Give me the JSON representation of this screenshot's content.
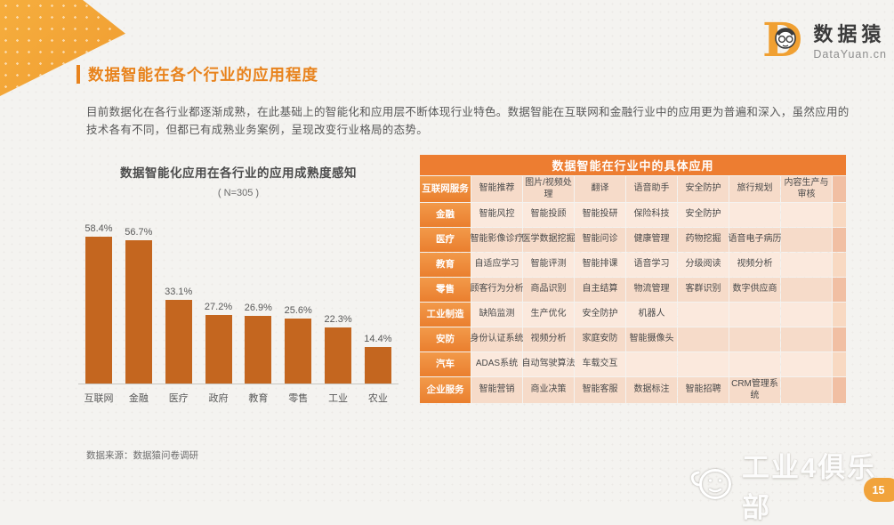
{
  "logo": {
    "name": "数据猿",
    "domain": "DataYuan.cn",
    "letter": "D"
  },
  "header": {
    "title": "数据智能在各个行业的应用程度"
  },
  "intro": "目前数据化在各行业都逐渐成熟，在此基础上的智能化和应用层不断体现行业特色。数据智能在互联网和金融行业中的应用更为普遍和深入，虽然应用的技术各有不同，但都已有成熟业务案例，呈现改变行业格局的态势。",
  "chart_data": {
    "type": "bar",
    "title": "数据智能化应用在各行业的应用成熟度感知",
    "subtitle": "( N=305 )",
    "categories": [
      "互联网",
      "金融",
      "医疗",
      "政府",
      "教育",
      "零售",
      "工业",
      "农业"
    ],
    "values": [
      58.4,
      56.7,
      33.1,
      27.2,
      26.9,
      25.6,
      22.3,
      14.4
    ],
    "data_labels": [
      "58.4%",
      "56.7%",
      "33.1%",
      "27.2%",
      "26.9%",
      "25.6%",
      "22.3%",
      "14.4%"
    ],
    "unit": "%",
    "ylim": [
      0,
      60
    ],
    "bar_color": "#c4661f",
    "grid": false,
    "legend": false
  },
  "table": {
    "title": "数据智能在行业中的具体应用",
    "rows": [
      {
        "label": "互联网服务",
        "cells": [
          "智能推荐",
          "图片/视频处理",
          "翻译",
          "语音助手",
          "安全防护",
          "旅行规划",
          "内容生产与审核"
        ]
      },
      {
        "label": "金融",
        "cells": [
          "智能风控",
          "智能投顾",
          "智能投研",
          "保险科技",
          "安全防护",
          "",
          ""
        ]
      },
      {
        "label": "医疗",
        "cells": [
          "智能影像诊疗",
          "医学数据挖掘",
          "智能问诊",
          "健康管理",
          "药物挖掘",
          "语音电子病历",
          ""
        ]
      },
      {
        "label": "教育",
        "cells": [
          "自适应学习",
          "智能评测",
          "智能排课",
          "语音学习",
          "分级阅读",
          "视频分析",
          ""
        ]
      },
      {
        "label": "零售",
        "cells": [
          "顾客行为分析",
          "商品识别",
          "自主结算",
          "物流管理",
          "客群识别",
          "数字供应商",
          ""
        ]
      },
      {
        "label": "工业制造",
        "cells": [
          "缺陷监测",
          "生产优化",
          "安全防护",
          "机器人",
          "",
          "",
          ""
        ]
      },
      {
        "label": "安防",
        "cells": [
          "身份认证系统",
          "视频分析",
          "家庭安防",
          "智能摄像头",
          "",
          "",
          ""
        ]
      },
      {
        "label": "汽车",
        "cells": [
          "ADAS系统",
          "自动驾驶算法",
          "车载交互",
          "",
          "",
          "",
          ""
        ]
      },
      {
        "label": "企业服务",
        "cells": [
          "智能营销",
          "商业决策",
          "智能客服",
          "数据标注",
          "智能招聘",
          "CRM管理系统",
          ""
        ]
      }
    ]
  },
  "footer": {
    "source": "数据来源：数据猿问卷调研",
    "watermark": "工业4俱乐部",
    "page_number": "15"
  },
  "colors": {
    "accent_orange": "#e8831d",
    "table_header": "#ed7d31",
    "bar": "#c4661f",
    "corner_shape": "#f3a93c",
    "row_odd": "#f6dbc9",
    "row_even": "#fbe9dd"
  }
}
